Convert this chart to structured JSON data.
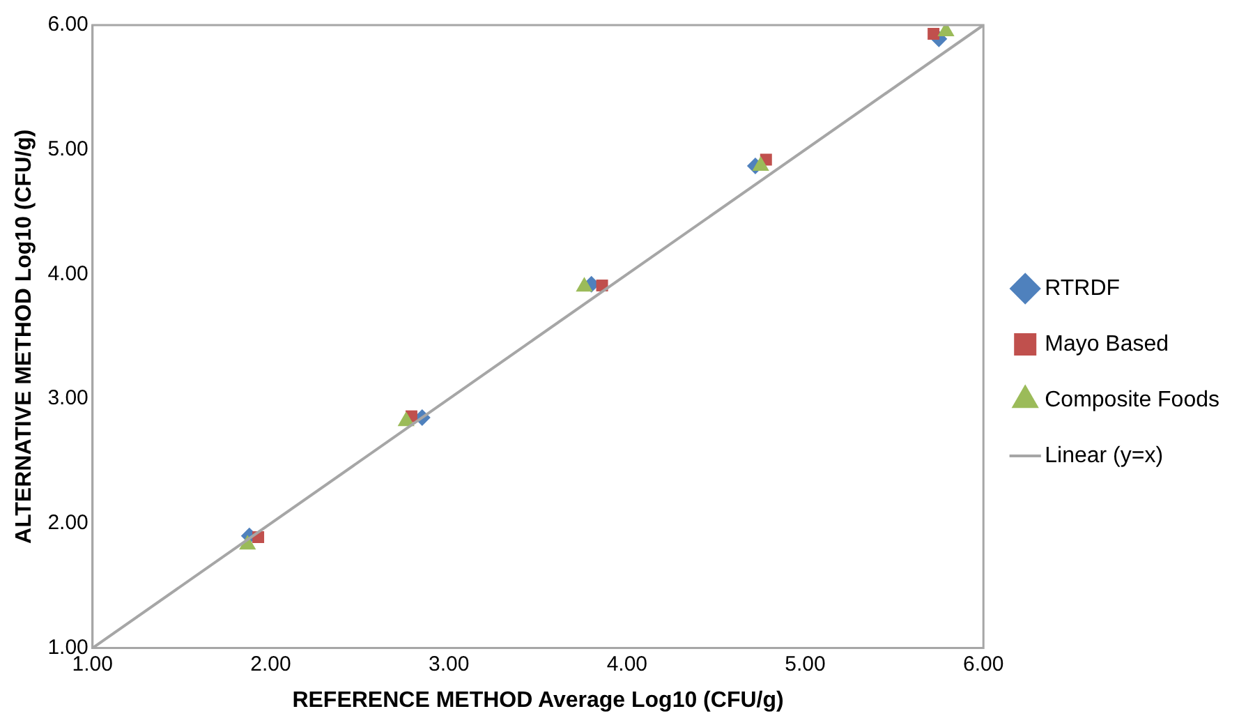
{
  "chart_data": {
    "type": "scatter",
    "xlabel": "REFERENCE METHOD Average Log10 (CFU/g)",
    "ylabel": "ALTERNATIVE METHOD Log10 (CFU/g)",
    "xlim": [
      1,
      6
    ],
    "ylim": [
      1,
      6
    ],
    "xticks": [
      {
        "value": 1,
        "label": "1.00"
      },
      {
        "value": 2,
        "label": "2.00"
      },
      {
        "value": 3,
        "label": "3.00"
      },
      {
        "value": 4,
        "label": "4.00"
      },
      {
        "value": 5,
        "label": "5.00"
      },
      {
        "value": 6,
        "label": "6.00"
      }
    ],
    "yticks": [
      {
        "value": 1,
        "label": "1.00"
      },
      {
        "value": 2,
        "label": "2.00"
      },
      {
        "value": 3,
        "label": "3.00"
      },
      {
        "value": 4,
        "label": "4.00"
      },
      {
        "value": 5,
        "label": "5.00"
      },
      {
        "value": 6,
        "label": "6.00"
      }
    ],
    "grid": false,
    "legend": "right",
    "series": [
      {
        "name": "RTRDF",
        "marker": "diamond",
        "color": "#4f81bd",
        "x": [
          1.88,
          2.85,
          3.8,
          4.72,
          5.75
        ],
        "values": [
          1.9,
          2.85,
          3.92,
          4.87,
          5.89
        ]
      },
      {
        "name": "Mayo Based",
        "marker": "square",
        "color": "#c0504d",
        "x": [
          1.93,
          2.79,
          3.86,
          4.78,
          5.72
        ],
        "values": [
          1.89,
          2.86,
          3.91,
          4.92,
          5.93
        ]
      },
      {
        "name": "Composite Foods",
        "marker": "triangle",
        "color": "#9bbb59",
        "x": [
          1.87,
          2.76,
          3.76,
          4.75,
          5.79
        ],
        "values": [
          1.83,
          2.82,
          3.9,
          4.87,
          5.95
        ]
      },
      {
        "name": "Linear (y=x)",
        "type": "line",
        "marker": "none",
        "color": "#a6a6a6",
        "x": [
          1,
          6
        ],
        "values": [
          1,
          6
        ]
      }
    ]
  }
}
